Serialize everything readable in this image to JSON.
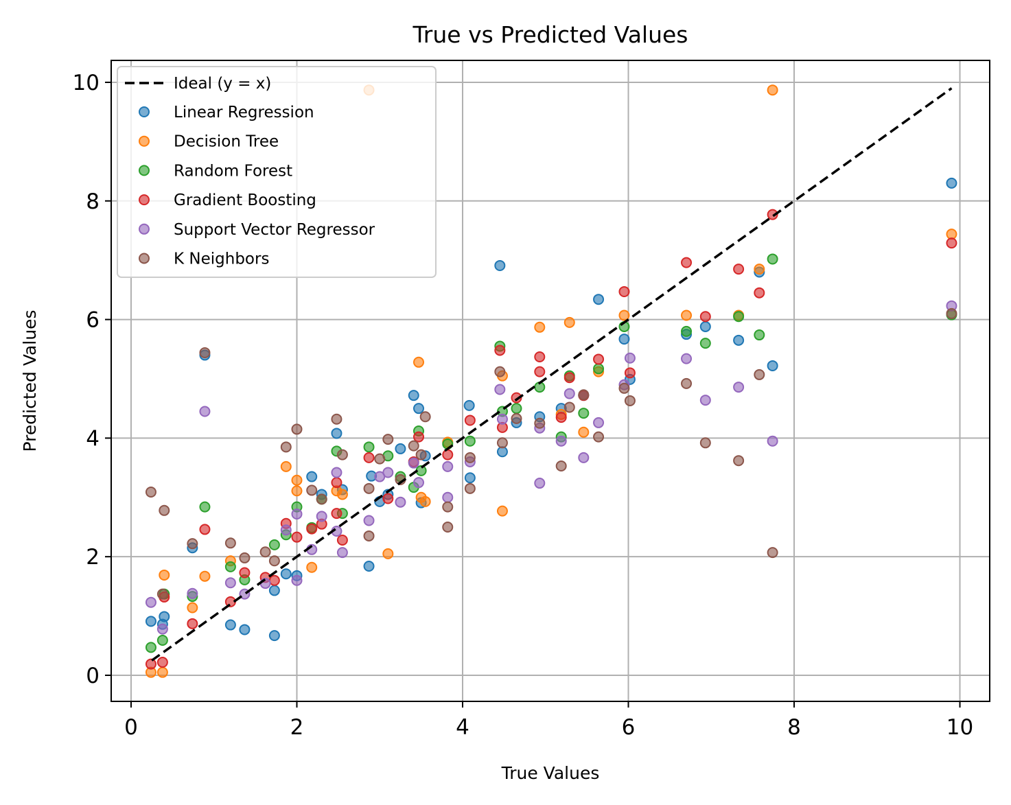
{
  "chart_data": {
    "type": "scatter",
    "title": "True vs Predicted Values",
    "xlabel": "True Values",
    "ylabel": "Predicted Values",
    "xlim": [
      -0.24,
      10.36
    ],
    "ylim": [
      -0.44,
      10.37
    ],
    "xticks": [
      0,
      2,
      4,
      6,
      8,
      10
    ],
    "yticks": [
      0,
      2,
      4,
      6,
      8,
      10
    ],
    "grid": true,
    "legend_position": "top-left",
    "ideal_line": {
      "name": "Ideal (y = x)",
      "x": [
        0.25,
        9.9
      ],
      "y": [
        0.25,
        9.9
      ],
      "color": "#000000",
      "style": "dashed"
    },
    "series": [
      {
        "name": "Linear Regression",
        "color": "#1f77b4",
        "points": [
          [
            0.24,
            0.91
          ],
          [
            0.38,
            0.86
          ],
          [
            0.4,
            0.99
          ],
          [
            0.74,
            2.15
          ],
          [
            0.89,
            5.4
          ],
          [
            1.2,
            0.85
          ],
          [
            1.37,
            0.77
          ],
          [
            1.73,
            0.67
          ],
          [
            1.73,
            1.43
          ],
          [
            1.87,
            1.71
          ],
          [
            2.0,
            1.68
          ],
          [
            2.18,
            3.35
          ],
          [
            2.3,
            3.05
          ],
          [
            2.48,
            4.08
          ],
          [
            2.55,
            3.13
          ],
          [
            2.87,
            1.84
          ],
          [
            2.9,
            3.36
          ],
          [
            3.0,
            2.93
          ],
          [
            3.1,
            3.05
          ],
          [
            3.25,
            3.82
          ],
          [
            3.41,
            4.72
          ],
          [
            3.47,
            4.5
          ],
          [
            3.5,
            2.91
          ],
          [
            3.55,
            3.7
          ],
          [
            4.08,
            4.55
          ],
          [
            4.09,
            3.33
          ],
          [
            4.45,
            6.91
          ],
          [
            4.48,
            3.77
          ],
          [
            4.65,
            4.26
          ],
          [
            4.93,
            4.36
          ],
          [
            5.19,
            4.5
          ],
          [
            5.46,
            4.72
          ],
          [
            5.64,
            6.34
          ],
          [
            5.95,
            5.67
          ],
          [
            6.02,
            4.99
          ],
          [
            6.7,
            5.75
          ],
          [
            6.93,
            5.88
          ],
          [
            7.33,
            5.65
          ],
          [
            7.58,
            6.8
          ],
          [
            7.74,
            5.22
          ],
          [
            9.9,
            8.3
          ]
        ]
      },
      {
        "name": "Decision Tree",
        "color": "#ff7f0e",
        "points": [
          [
            0.24,
            0.05
          ],
          [
            0.38,
            0.05
          ],
          [
            0.4,
            1.69
          ],
          [
            0.74,
            1.14
          ],
          [
            0.89,
            1.67
          ],
          [
            1.2,
            1.93
          ],
          [
            1.87,
            3.52
          ],
          [
            2.0,
            3.29
          ],
          [
            2.0,
            3.11
          ],
          [
            2.18,
            1.82
          ],
          [
            2.48,
            3.11
          ],
          [
            2.55,
            3.05
          ],
          [
            2.87,
            9.87
          ],
          [
            3.1,
            2.05
          ],
          [
            3.47,
            5.28
          ],
          [
            3.5,
            3.0
          ],
          [
            3.55,
            2.93
          ],
          [
            3.82,
            3.93
          ],
          [
            4.48,
            2.77
          ],
          [
            4.48,
            5.05
          ],
          [
            4.93,
            5.87
          ],
          [
            5.19,
            4.4
          ],
          [
            5.29,
            5.95
          ],
          [
            5.46,
            4.1
          ],
          [
            5.64,
            5.12
          ],
          [
            5.95,
            6.07
          ],
          [
            6.7,
            6.07
          ],
          [
            7.33,
            6.07
          ],
          [
            7.58,
            6.85
          ],
          [
            7.74,
            9.87
          ],
          [
            9.9,
            7.44
          ]
        ]
      },
      {
        "name": "Random Forest",
        "color": "#2ca02c",
        "points": [
          [
            0.24,
            0.47
          ],
          [
            0.38,
            0.59
          ],
          [
            0.4,
            1.37
          ],
          [
            0.74,
            1.33
          ],
          [
            0.89,
            2.84
          ],
          [
            1.2,
            1.83
          ],
          [
            1.37,
            1.61
          ],
          [
            1.73,
            2.2
          ],
          [
            1.87,
            2.37
          ],
          [
            2.0,
            2.84
          ],
          [
            2.18,
            2.49
          ],
          [
            2.3,
            2.97
          ],
          [
            2.48,
            3.78
          ],
          [
            2.55,
            2.73
          ],
          [
            2.87,
            3.85
          ],
          [
            3.1,
            3.7
          ],
          [
            3.25,
            3.35
          ],
          [
            3.41,
            3.17
          ],
          [
            3.47,
            4.12
          ],
          [
            3.5,
            3.45
          ],
          [
            3.82,
            3.9
          ],
          [
            4.09,
            3.95
          ],
          [
            4.45,
            5.55
          ],
          [
            4.48,
            4.45
          ],
          [
            4.65,
            4.5
          ],
          [
            4.93,
            4.86
          ],
          [
            5.19,
            4.02
          ],
          [
            5.29,
            5.05
          ],
          [
            5.46,
            4.42
          ],
          [
            5.64,
            5.17
          ],
          [
            5.95,
            5.88
          ],
          [
            6.7,
            5.8
          ],
          [
            6.93,
            5.6
          ],
          [
            7.33,
            6.05
          ],
          [
            7.58,
            5.74
          ],
          [
            7.74,
            7.02
          ],
          [
            9.9,
            6.08
          ]
        ]
      },
      {
        "name": "Gradient Boosting",
        "color": "#d62728",
        "points": [
          [
            0.24,
            0.19
          ],
          [
            0.38,
            0.22
          ],
          [
            0.4,
            1.32
          ],
          [
            0.74,
            0.87
          ],
          [
            0.89,
            2.46
          ],
          [
            1.2,
            1.24
          ],
          [
            1.37,
            1.73
          ],
          [
            1.62,
            1.65
          ],
          [
            1.73,
            1.6
          ],
          [
            1.87,
            2.56
          ],
          [
            2.0,
            2.33
          ],
          [
            2.18,
            2.47
          ],
          [
            2.3,
            2.55
          ],
          [
            2.48,
            3.25
          ],
          [
            2.48,
            2.73
          ],
          [
            2.55,
            2.28
          ],
          [
            2.87,
            3.67
          ],
          [
            3.1,
            2.98
          ],
          [
            3.41,
            3.6
          ],
          [
            3.47,
            4.02
          ],
          [
            3.82,
            3.72
          ],
          [
            4.09,
            4.3
          ],
          [
            4.45,
            5.48
          ],
          [
            4.48,
            4.18
          ],
          [
            4.65,
            4.68
          ],
          [
            4.93,
            5.37
          ],
          [
            4.93,
            5.12
          ],
          [
            5.19,
            4.35
          ],
          [
            5.29,
            5.02
          ],
          [
            5.46,
            4.72
          ],
          [
            5.64,
            5.33
          ],
          [
            5.95,
            6.47
          ],
          [
            6.02,
            5.1
          ],
          [
            6.7,
            6.96
          ],
          [
            6.93,
            6.05
          ],
          [
            7.33,
            6.85
          ],
          [
            7.58,
            6.45
          ],
          [
            7.74,
            7.77
          ],
          [
            9.9,
            7.29
          ]
        ]
      },
      {
        "name": "Support Vector Regressor",
        "color": "#9467bd",
        "points": [
          [
            0.24,
            1.23
          ],
          [
            0.38,
            0.78
          ],
          [
            0.74,
            1.38
          ],
          [
            0.89,
            4.45
          ],
          [
            1.2,
            1.56
          ],
          [
            1.37,
            1.37
          ],
          [
            1.62,
            1.55
          ],
          [
            1.87,
            2.45
          ],
          [
            2.0,
            1.6
          ],
          [
            2.0,
            2.72
          ],
          [
            2.18,
            2.12
          ],
          [
            2.3,
            2.68
          ],
          [
            2.48,
            3.42
          ],
          [
            2.48,
            2.43
          ],
          [
            2.55,
            2.07
          ],
          [
            2.87,
            2.61
          ],
          [
            3.0,
            3.35
          ],
          [
            3.1,
            3.42
          ],
          [
            3.25,
            2.92
          ],
          [
            3.41,
            3.58
          ],
          [
            3.47,
            3.25
          ],
          [
            3.82,
            3.52
          ],
          [
            3.82,
            3.0
          ],
          [
            4.09,
            3.6
          ],
          [
            4.45,
            4.82
          ],
          [
            4.48,
            4.32
          ],
          [
            4.93,
            3.24
          ],
          [
            4.93,
            4.17
          ],
          [
            5.19,
            3.95
          ],
          [
            5.29,
            4.75
          ],
          [
            5.46,
            3.67
          ],
          [
            5.64,
            4.26
          ],
          [
            5.95,
            4.9
          ],
          [
            6.02,
            5.35
          ],
          [
            6.7,
            5.34
          ],
          [
            6.93,
            4.64
          ],
          [
            7.33,
            4.86
          ],
          [
            7.74,
            3.95
          ],
          [
            9.9,
            6.23
          ]
        ]
      },
      {
        "name": "K Neighbors",
        "color": "#8c564b",
        "points": [
          [
            0.24,
            3.09
          ],
          [
            0.38,
            1.37
          ],
          [
            0.4,
            2.78
          ],
          [
            0.74,
            2.22
          ],
          [
            0.89,
            5.44
          ],
          [
            1.2,
            2.23
          ],
          [
            1.37,
            1.98
          ],
          [
            1.62,
            2.08
          ],
          [
            1.73,
            1.93
          ],
          [
            1.87,
            3.85
          ],
          [
            2.0,
            4.15
          ],
          [
            2.18,
            3.12
          ],
          [
            2.3,
            2.97
          ],
          [
            2.48,
            4.32
          ],
          [
            2.55,
            3.72
          ],
          [
            2.87,
            2.35
          ],
          [
            2.87,
            3.15
          ],
          [
            3.0,
            3.65
          ],
          [
            3.1,
            3.98
          ],
          [
            3.25,
            3.3
          ],
          [
            3.41,
            3.87
          ],
          [
            3.5,
            3.72
          ],
          [
            3.55,
            4.36
          ],
          [
            3.82,
            2.84
          ],
          [
            3.82,
            2.5
          ],
          [
            4.09,
            3.15
          ],
          [
            4.09,
            3.67
          ],
          [
            4.45,
            5.12
          ],
          [
            4.48,
            3.92
          ],
          [
            4.65,
            4.33
          ],
          [
            4.93,
            4.25
          ],
          [
            5.19,
            3.53
          ],
          [
            5.29,
            4.52
          ],
          [
            5.46,
            4.73
          ],
          [
            5.64,
            4.02
          ],
          [
            5.95,
            4.84
          ],
          [
            6.02,
            4.63
          ],
          [
            6.7,
            4.92
          ],
          [
            6.93,
            3.92
          ],
          [
            7.33,
            3.62
          ],
          [
            7.58,
            5.07
          ],
          [
            7.74,
            2.07
          ],
          [
            9.9,
            6.1
          ]
        ]
      }
    ]
  }
}
